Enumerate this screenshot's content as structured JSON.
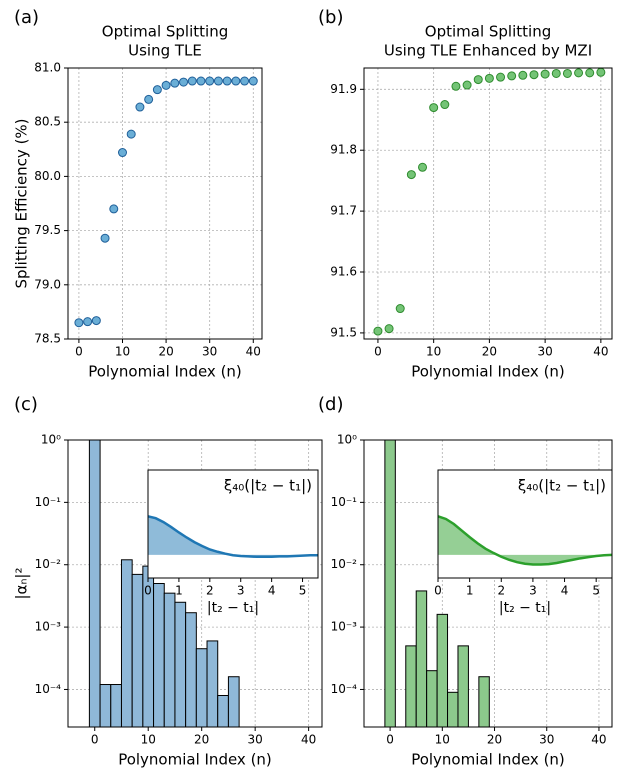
{
  "chart_data": [
    {
      "type": "scatter",
      "panel_label": "(a)",
      "title": [
        "Optimal Splitting",
        "Using TLE"
      ],
      "xlabel": "Polynomial Index (n)",
      "ylabel": "Splitting Efficiency (%)",
      "x": [
        0,
        2,
        4,
        6,
        8,
        10,
        12,
        14,
        16,
        18,
        20,
        22,
        24,
        26,
        28,
        30,
        32,
        34,
        36,
        38,
        40
      ],
      "values": [
        78.65,
        78.66,
        78.67,
        79.43,
        79.7,
        80.22,
        80.39,
        80.64,
        80.71,
        80.8,
        80.84,
        80.86,
        80.87,
        80.88,
        80.88,
        80.88,
        80.88,
        80.88,
        80.88,
        80.88,
        80.88
      ],
      "color": "#6aaed6",
      "edge_color": "#1f5f99",
      "xlim": [
        -2.5,
        42
      ],
      "ylim": [
        78.5,
        81.0
      ],
      "xticks": [
        0,
        10,
        20,
        30,
        40
      ],
      "yticks": [
        78.5,
        {
          "value": 79,
          "label": "79.0"
        },
        79.5,
        {
          "value": 80,
          "label": "80.0"
        },
        80.5,
        {
          "value": 81,
          "label": "81.0"
        }
      ],
      "grid": true
    },
    {
      "type": "scatter",
      "panel_label": "(b)",
      "title": [
        "Optimal Splitting",
        "Using TLE Enhanced by MZI"
      ],
      "xlabel": "Polynomial Index (n)",
      "x": [
        0,
        2,
        4,
        6,
        8,
        10,
        12,
        14,
        16,
        18,
        20,
        22,
        24,
        26,
        28,
        30,
        32,
        34,
        36,
        38,
        40
      ],
      "values": [
        91.503,
        91.507,
        91.54,
        91.76,
        91.772,
        91.87,
        91.875,
        91.905,
        91.907,
        91.916,
        91.918,
        91.92,
        91.922,
        91.923,
        91.924,
        91.925,
        91.926,
        91.926,
        91.927,
        91.927,
        91.928
      ],
      "color": "#74c476",
      "edge_color": "#2e8b2e",
      "xlim": [
        -2.5,
        42
      ],
      "ylim": [
        91.49,
        91.935
      ],
      "xticks": [
        0,
        10,
        20,
        30,
        40
      ],
      "yticks": [
        91.5,
        91.6,
        91.7,
        91.8,
        91.9
      ],
      "grid": true
    },
    {
      "type": "bar",
      "panel_label": "(c)",
      "xlabel": "Polynomial Index (n)",
      "ylabel": "|αₙ|²",
      "x": [
        0,
        2,
        4,
        6,
        8,
        10,
        12,
        14,
        16,
        18,
        20,
        22,
        24,
        26
      ],
      "values": [
        1.0,
        0.00012,
        0.00012,
        0.012,
        0.007,
        0.0095,
        0.005,
        0.0035,
        0.0025,
        0.0017,
        0.00045,
        0.0006,
        8e-05,
        0.00016
      ],
      "color": "#8fb8d8",
      "edge_color": "#000000",
      "yscale": "log",
      "xlim": [
        -5,
        42.5
      ],
      "ylim": [
        2.5e-05,
        1
      ],
      "xticks": [
        0,
        10,
        20,
        30,
        40
      ],
      "yticks": [
        {
          "value": 0.0001,
          "label": "10⁻⁴"
        },
        {
          "value": 0.001,
          "label": "10⁻³"
        },
        {
          "value": 0.01,
          "label": "10⁻²"
        },
        {
          "value": 0.1,
          "label": "10⁻¹"
        },
        {
          "value": 1,
          "label": "10⁰"
        }
      ],
      "grid": true
    },
    {
      "type": "bar",
      "panel_label": "(d)",
      "xlabel": "Polynomial Index (n)",
      "x": [
        0,
        4,
        6,
        8,
        10,
        12,
        14,
        18
      ],
      "values": [
        1.0,
        0.0005,
        0.0038,
        0.0002,
        0.0016,
        9e-05,
        0.0005,
        0.00016
      ],
      "color": "#8cc98c",
      "edge_color": "#000000",
      "yscale": "log",
      "xlim": [
        -5,
        42.5
      ],
      "ylim": [
        2.5e-05,
        1
      ],
      "xticks": [
        0,
        10,
        20,
        30,
        40
      ],
      "yticks": [
        {
          "value": 0.0001,
          "label": "10⁻⁴"
        },
        {
          "value": 0.001,
          "label": "10⁻³"
        },
        {
          "value": 0.01,
          "label": "10⁻²"
        },
        {
          "value": 0.1,
          "label": "10⁻¹"
        },
        {
          "value": 1,
          "label": "10⁰"
        }
      ],
      "grid": true
    },
    {
      "type": "area",
      "annotation": "ξ₄₀(|t₂ − t₁|)",
      "xlabel": "|t₂ − t₁|",
      "x": [
        0,
        0.25,
        0.5,
        0.75,
        1,
        1.25,
        1.5,
        1.75,
        2,
        2.25,
        2.5,
        2.75,
        3,
        3.25,
        3.5,
        3.75,
        4,
        4.25,
        4.5,
        4.75,
        5,
        5.25,
        5.5
      ],
      "values": [
        1.0,
        0.95,
        0.85,
        0.72,
        0.58,
        0.45,
        0.33,
        0.23,
        0.14,
        0.08,
        0.03,
        -0.01,
        -0.03,
        -0.04,
        -0.05,
        -0.05,
        -0.05,
        -0.04,
        -0.04,
        -0.03,
        -0.02,
        -0.01,
        -0.01
      ],
      "color": "#1f77b4",
      "xlim": [
        0,
        5.5
      ],
      "ylim": [
        -0.6,
        2.2
      ],
      "xticks": [
        0,
        1,
        2,
        3,
        4,
        5
      ]
    },
    {
      "type": "area",
      "annotation": "ξ₄₀(|t₂ − t₁|)",
      "xlabel": "|t₂ − t₁|",
      "x": [
        0,
        0.25,
        0.5,
        0.75,
        1,
        1.25,
        1.5,
        1.75,
        2,
        2.25,
        2.5,
        2.75,
        3,
        3.25,
        3.5,
        3.75,
        4,
        4.25,
        4.5,
        4.75,
        5,
        5.25,
        5.5
      ],
      "values": [
        1.0,
        0.93,
        0.8,
        0.63,
        0.46,
        0.3,
        0.16,
        0.05,
        -0.05,
        -0.13,
        -0.19,
        -0.23,
        -0.25,
        -0.25,
        -0.24,
        -0.21,
        -0.17,
        -0.13,
        -0.09,
        -0.06,
        -0.03,
        -0.01,
        0.0
      ],
      "color": "#2ca02c",
      "xlim": [
        0,
        5.5
      ],
      "ylim": [
        -0.6,
        2.2
      ],
      "xticks": [
        0,
        1,
        2,
        3,
        4,
        5
      ]
    }
  ]
}
